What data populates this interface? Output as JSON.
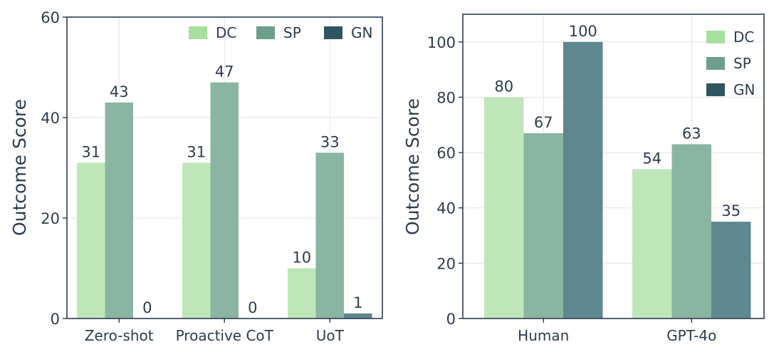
{
  "colors": {
    "DC": "#bfe6b8",
    "SP": "#8ab5a3",
    "GN": "#5f8790",
    "legend_DC": "#a7df9f",
    "legend_SP": "#6e9f8c",
    "legend_GN": "#2f5561",
    "axis": "#2f3b4f",
    "grid": "#e3e3e3"
  },
  "chart_data": [
    {
      "type": "bar",
      "categories": [
        "Zero-shot",
        "Proactive CoT",
        "UoT"
      ],
      "series": [
        {
          "name": "DC",
          "values": [
            31,
            31,
            10
          ]
        },
        {
          "name": "SP",
          "values": [
            43,
            47,
            33
          ]
        },
        {
          "name": "GN",
          "values": [
            0,
            0,
            1
          ]
        }
      ],
      "title": "",
      "xlabel": "",
      "ylabel": "Outcome Score",
      "ylim": [
        0,
        60
      ],
      "yticks": [
        0,
        20,
        40,
        60
      ],
      "grid": true,
      "legend": "top-right"
    },
    {
      "type": "bar",
      "categories": [
        "Human",
        "GPT-4o"
      ],
      "series": [
        {
          "name": "DC",
          "values": [
            80,
            54
          ]
        },
        {
          "name": "SP",
          "values": [
            67,
            63
          ]
        },
        {
          "name": "GN",
          "values": [
            100,
            35
          ]
        }
      ],
      "title": "",
      "xlabel": "",
      "ylabel": "Outcome Score",
      "ylim": [
        0,
        110
      ],
      "yticks": [
        0,
        20,
        40,
        60,
        80,
        100
      ],
      "grid": true,
      "legend": "top-right"
    }
  ]
}
